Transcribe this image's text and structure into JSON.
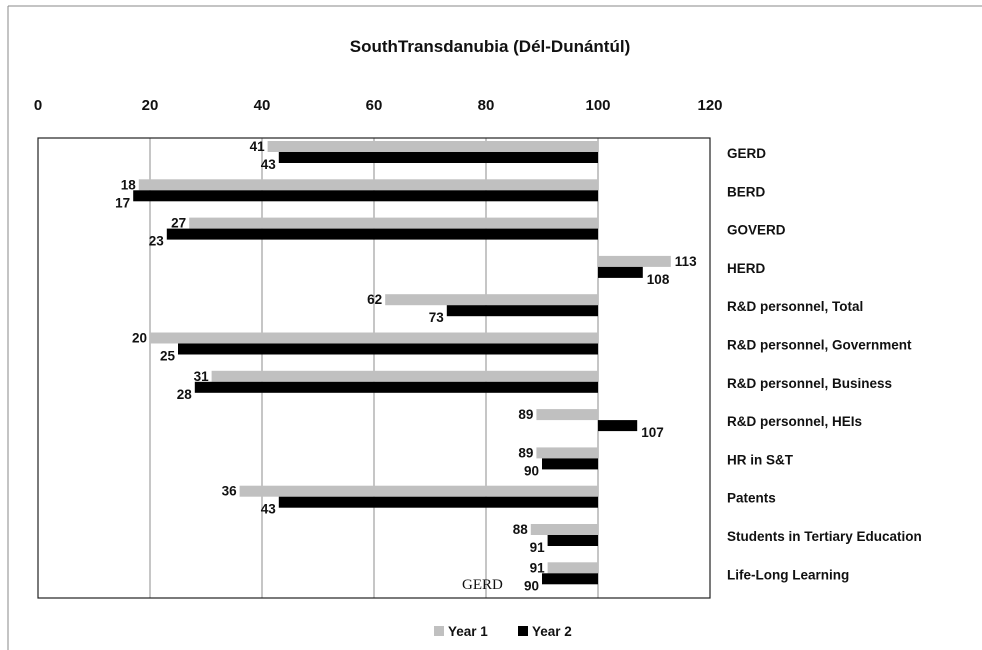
{
  "chart_data": {
    "type": "bar",
    "orientation": "horizontal",
    "title": "SouthTransdanubia (Dél-Dunántúl)",
    "xlim": [
      0,
      120
    ],
    "xticks": [
      "0",
      "20",
      "40",
      "60",
      "80",
      "100",
      "120"
    ],
    "baseline": 100,
    "grid": true,
    "legend_position": "bottom",
    "categories": [
      "GERD",
      "BERD",
      "GOVERD",
      "HERD",
      "R&D personnel, Total",
      "R&D personnel, Government",
      "R&D personnel, Business",
      "R&D personnel, HEIs",
      "HR in S&T",
      "Patents",
      "Students in Tertiary Education",
      "Life-Long Learning"
    ],
    "series": [
      {
        "name": "Year 1",
        "color": "#c0c0c0",
        "values": [
          41,
          18,
          27,
          113,
          62,
          20,
          31,
          89,
          89,
          36,
          88,
          91
        ]
      },
      {
        "name": "Year 2",
        "color": "#000000",
        "values": [
          43,
          17,
          23,
          108,
          73,
          25,
          28,
          107,
          90,
          43,
          91,
          90
        ]
      }
    ],
    "annotation": "GERD"
  }
}
